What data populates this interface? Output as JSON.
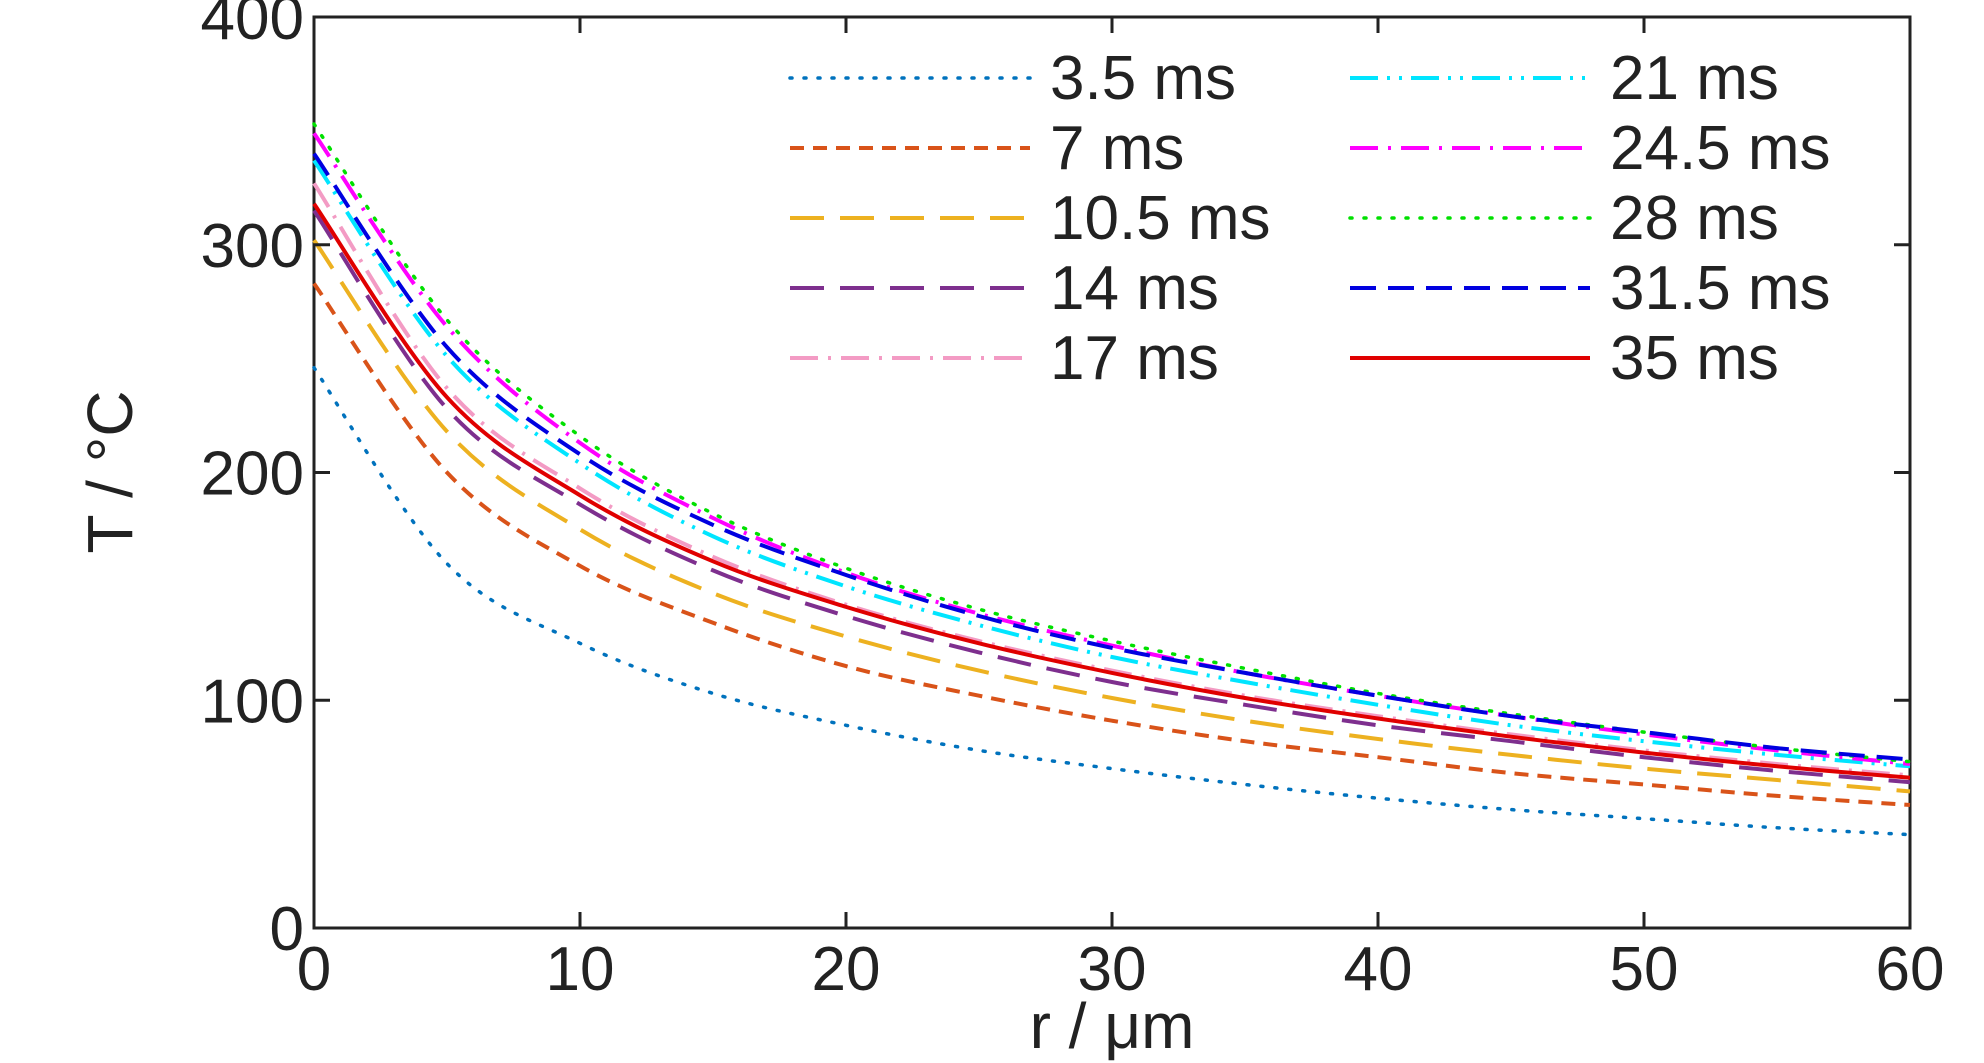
{
  "chart_data": {
    "type": "line",
    "xlabel": "r / μm",
    "ylabel": "T / °C",
    "xlim": [
      0,
      60
    ],
    "ylim": [
      0,
      400
    ],
    "xticks": [
      0,
      10,
      20,
      30,
      40,
      50,
      60
    ],
    "yticks": [
      0,
      100,
      200,
      300,
      400
    ],
    "grid": false,
    "legend_position": "top-right",
    "x": [
      0,
      5,
      10,
      15,
      20,
      25,
      30,
      35,
      40,
      45,
      50,
      55,
      60
    ],
    "series": [
      {
        "name": "3.5 ms",
        "color": "#0072BD",
        "dash": "dotted",
        "values": [
          246,
          160,
          125,
          103,
          89,
          78,
          70,
          63,
          57,
          52,
          48,
          44,
          41
        ]
      },
      {
        "name": "7 ms",
        "color": "#D95319",
        "dash": "short-dash",
        "values": [
          283,
          200,
          159,
          134,
          115,
          102,
          91,
          82,
          75,
          68,
          63,
          58,
          54
        ]
      },
      {
        "name": "10.5 ms",
        "color": "#EDB120",
        "dash": "long-dash",
        "values": [
          302,
          218,
          175,
          147,
          128,
          113,
          101,
          91,
          83,
          76,
          70,
          65,
          60
        ]
      },
      {
        "name": "14 ms",
        "color": "#7E2F8E",
        "dash": "long-dash",
        "values": [
          315,
          228,
          186,
          157,
          137,
          121,
          108,
          98,
          89,
          82,
          75,
          69,
          64
        ]
      },
      {
        "name": "17 ms",
        "color": "#F39BC4",
        "dash": "dash-dot",
        "values": [
          327,
          237,
          193,
          163,
          142,
          126,
          113,
          102,
          93,
          85,
          78,
          72,
          67
        ]
      },
      {
        "name": "21 ms",
        "color": "#00E5FF",
        "dash": "dash-dot-dot",
        "values": [
          337,
          251,
          204,
          172,
          150,
          133,
          119,
          108,
          98,
          89,
          82,
          76,
          71
        ]
      },
      {
        "name": "24.5 ms",
        "color": "#FF00FF",
        "dash": "dash-dot",
        "values": [
          349,
          264,
          213,
          180,
          156,
          138,
          124,
          112,
          102,
          93,
          85,
          78,
          72
        ]
      },
      {
        "name": "28 ms",
        "color": "#00E000",
        "dash": "dotted",
        "values": [
          353,
          267,
          216,
          182,
          158,
          140,
          126,
          114,
          103,
          94,
          86,
          79,
          73
        ]
      },
      {
        "name": "31.5 ms",
        "color": "#0000E0",
        "dash": "dash",
        "values": [
          340,
          255,
          208,
          177,
          155,
          137,
          123,
          112,
          102,
          93,
          86,
          79,
          74
        ]
      },
      {
        "name": "35 ms",
        "color": "#E00000",
        "dash": "solid",
        "values": [
          318,
          233,
          190,
          161,
          141,
          125,
          112,
          101,
          92,
          84,
          77,
          71,
          66
        ]
      }
    ]
  }
}
